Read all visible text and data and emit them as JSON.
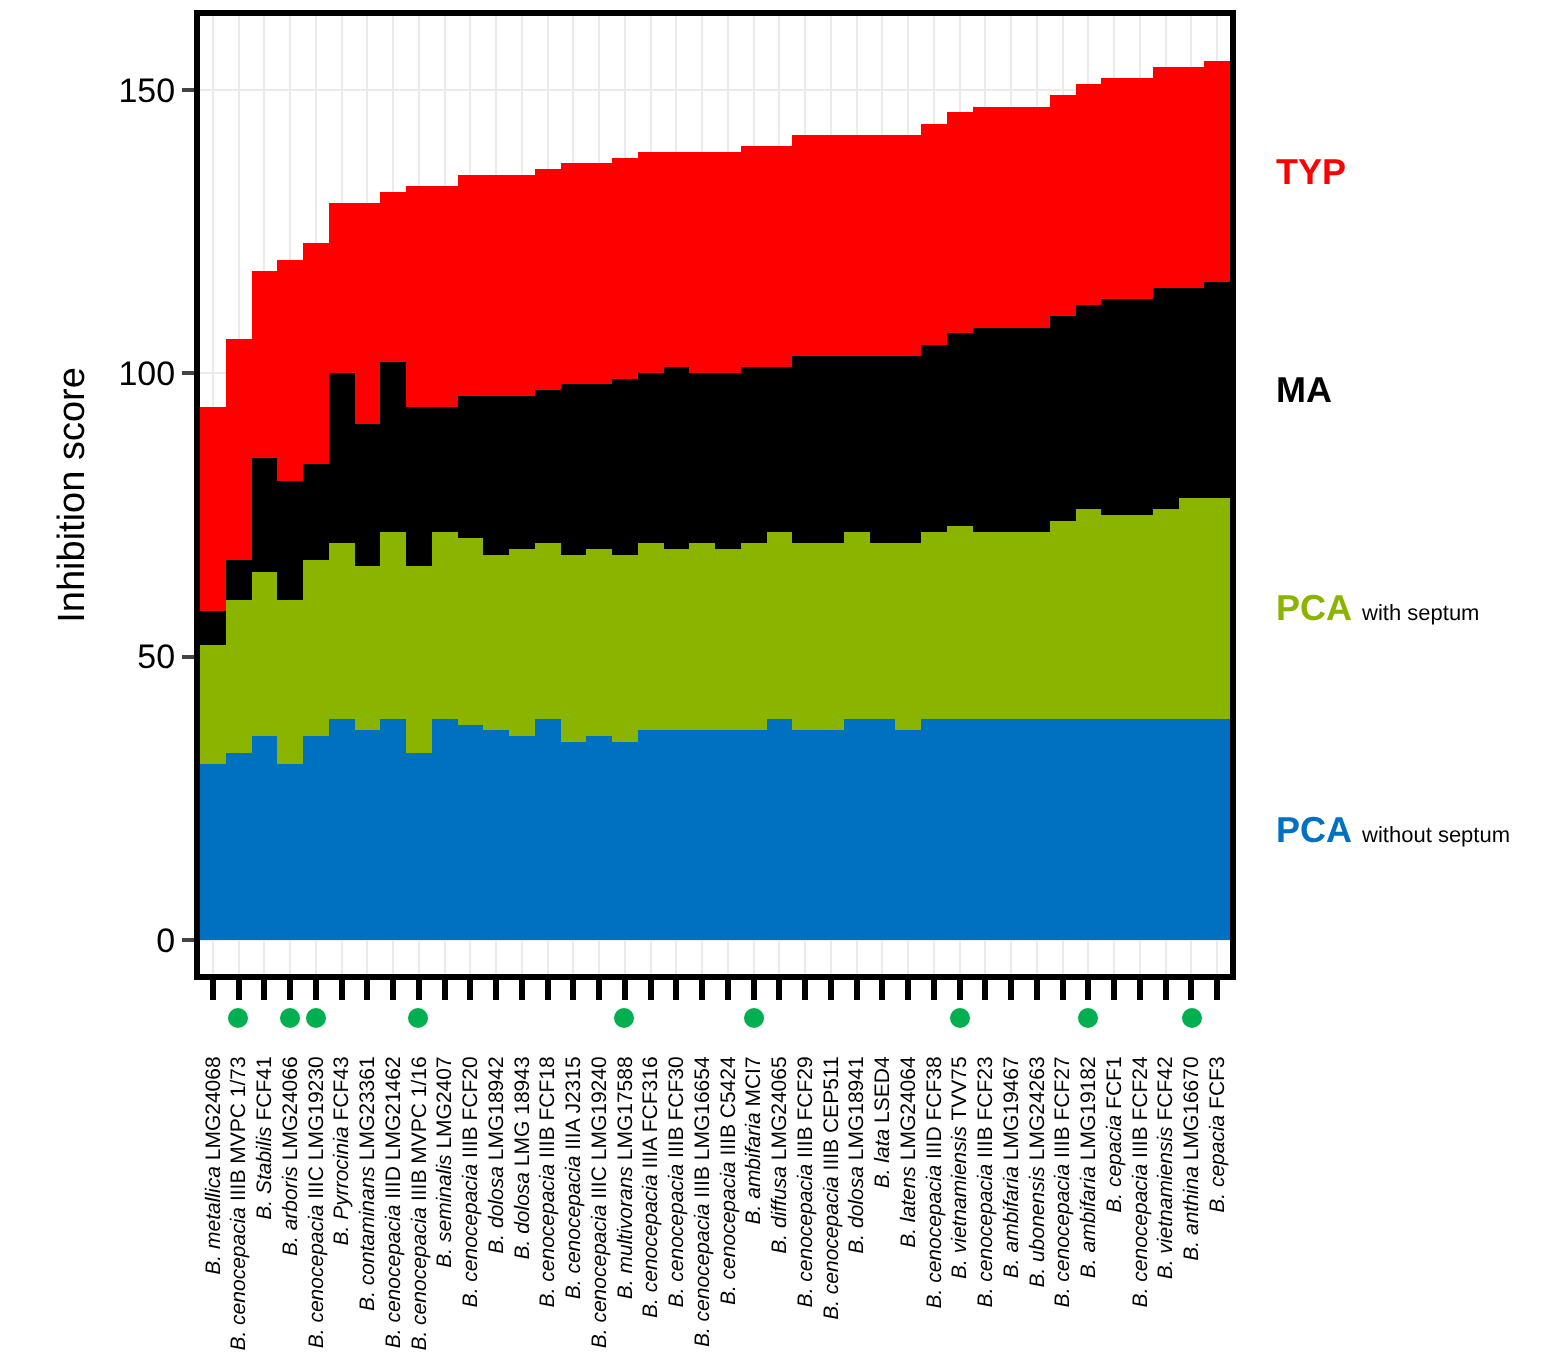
{
  "chart_data": {
    "type": "bar",
    "stacked": true,
    "ylabel": "Inhibition score",
    "categories": [
      "B. metallica LMG24068",
      "B. cenocepacia IIIB MVPC 1/73",
      "B. Stabilis FCF41",
      "B. arboris LMG24066",
      "B. cenocepacia IIIC LMG19230",
      "B. Pyrrocinia FCF43",
      "B. contaminans LMG23361",
      "B. cenocepacia IIID LMG21462",
      "B. cenocepacia IIIB MVPC 1/16",
      "B. seminalis LMG2407",
      "B. cenocepacia IIIB FCF20",
      "B. dolosa LMG18942",
      "B. dolosa LMG 18943",
      "B. cenocepacia IIIB FCF18",
      "B. cenocepacia IIIA J2315",
      "B. cenocepacia IIIC LMG19240",
      "B. multivorans LMG17588",
      "B. cenocepacia IIIA FCF316",
      "B. cenocepacia IIIB FCF30",
      "B. cenocepacia IIIB LMG16654",
      "B. cenocepacia IIIB C5424",
      "B. ambifaria MCI7",
      "B. diffusa LMG24065",
      "B. cenocepacia IIIB FCF29",
      "B. cenocepacia IIIB CEP511",
      "B. dolosa LMG18941",
      "B. lata LSED4",
      "B. latens LMG24064",
      "B. cenocepacia IIID FCF38",
      "B. vietnamiensis TVV75",
      "B. cenocepacia IIIB FCF23",
      "B. ambifaria LMG19467",
      "B. ubonensis LMG24263",
      "B. cenocepacia IIIB FCF27",
      "B. ambifaria LMG19182",
      "B. cepacia FCF1",
      "B. cenocepacia IIIB FCF24",
      "B. vietnamiensis FCF42",
      "B. anthina LMG16670",
      "B. cepacia FCF3"
    ],
    "series": [
      {
        "name": "PCA without septum",
        "color": "#0070c0",
        "values": [
          31,
          33,
          36,
          31,
          36,
          39,
          37,
          39,
          33,
          39,
          38,
          37,
          36,
          39,
          35,
          36,
          35,
          37,
          37,
          37,
          37,
          37,
          39,
          37,
          37,
          39,
          39,
          37,
          39,
          39,
          39,
          39,
          39,
          39,
          39,
          39,
          39,
          39,
          39,
          39
        ]
      },
      {
        "name": "PCA with septum",
        "color": "#8ab400",
        "values": [
          21,
          27,
          29,
          29,
          31,
          31,
          29,
          33,
          33,
          33,
          33,
          31,
          33,
          31,
          33,
          33,
          33,
          33,
          32,
          33,
          32,
          33,
          33,
          33,
          33,
          33,
          31,
          33,
          33,
          34,
          33,
          33,
          33,
          35,
          37,
          36,
          36,
          37,
          39,
          39
        ]
      },
      {
        "name": "MA",
        "color": "#000000",
        "values": [
          6,
          7,
          20,
          21,
          17,
          30,
          25,
          30,
          28,
          22,
          25,
          28,
          27,
          27,
          30,
          29,
          31,
          30,
          32,
          30,
          31,
          31,
          29,
          33,
          33,
          31,
          33,
          33,
          33,
          34,
          36,
          36,
          36,
          36,
          36,
          38,
          38,
          39,
          37,
          38
        ]
      },
      {
        "name": "TYP",
        "color": "#ff0000",
        "values": [
          36,
          39,
          33,
          39,
          39,
          30,
          39,
          30,
          39,
          39,
          39,
          39,
          39,
          39,
          39,
          39,
          39,
          39,
          38,
          39,
          39,
          39,
          39,
          39,
          39,
          39,
          39,
          39,
          39,
          39,
          39,
          39,
          39,
          39,
          39,
          39,
          39,
          39,
          39,
          39
        ]
      }
    ],
    "ylim": [
      -6,
      163
    ],
    "yticks": [
      0,
      50,
      100,
      150
    ],
    "grid": true,
    "legend": false
  }
}
